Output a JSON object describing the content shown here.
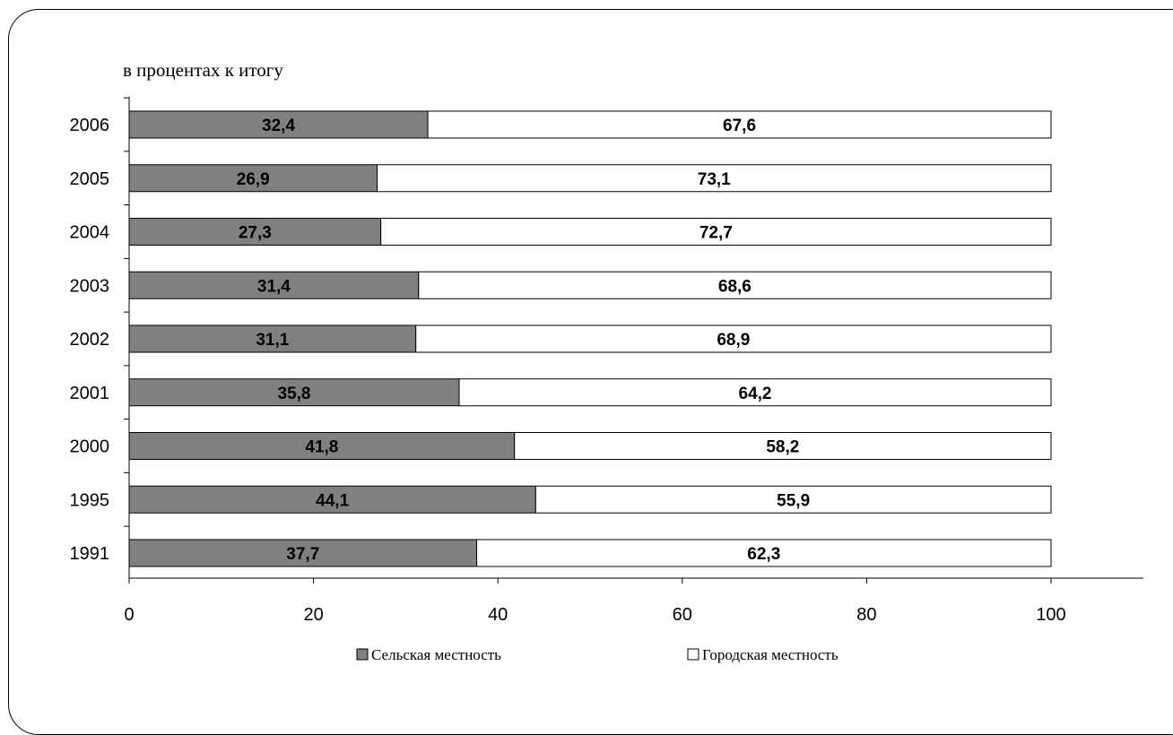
{
  "chart_data": {
    "type": "bar",
    "orientation": "horizontal",
    "stacked": true,
    "subtitle": "в процентах к итогу",
    "categories": [
      "1991",
      "1995",
      "2000",
      "2001",
      "2002",
      "2003",
      "2004",
      "2005",
      "2006"
    ],
    "series": [
      {
        "name": "Сельская местность",
        "values": [
          37.7,
          44.1,
          41.8,
          35.8,
          31.1,
          31.4,
          27.3,
          26.9,
          32.4
        ],
        "color": "#808080"
      },
      {
        "name": "Городская местность",
        "values": [
          62.3,
          55.9,
          58.2,
          64.2,
          68.9,
          68.6,
          72.7,
          73.1,
          67.6
        ],
        "color": "#ffffff"
      }
    ],
    "xlim": [
      0,
      110
    ],
    "xticks": [
      0,
      20,
      40,
      60,
      80,
      100
    ],
    "grid": false,
    "legend_position": "bottom",
    "decimal_separator": ","
  }
}
